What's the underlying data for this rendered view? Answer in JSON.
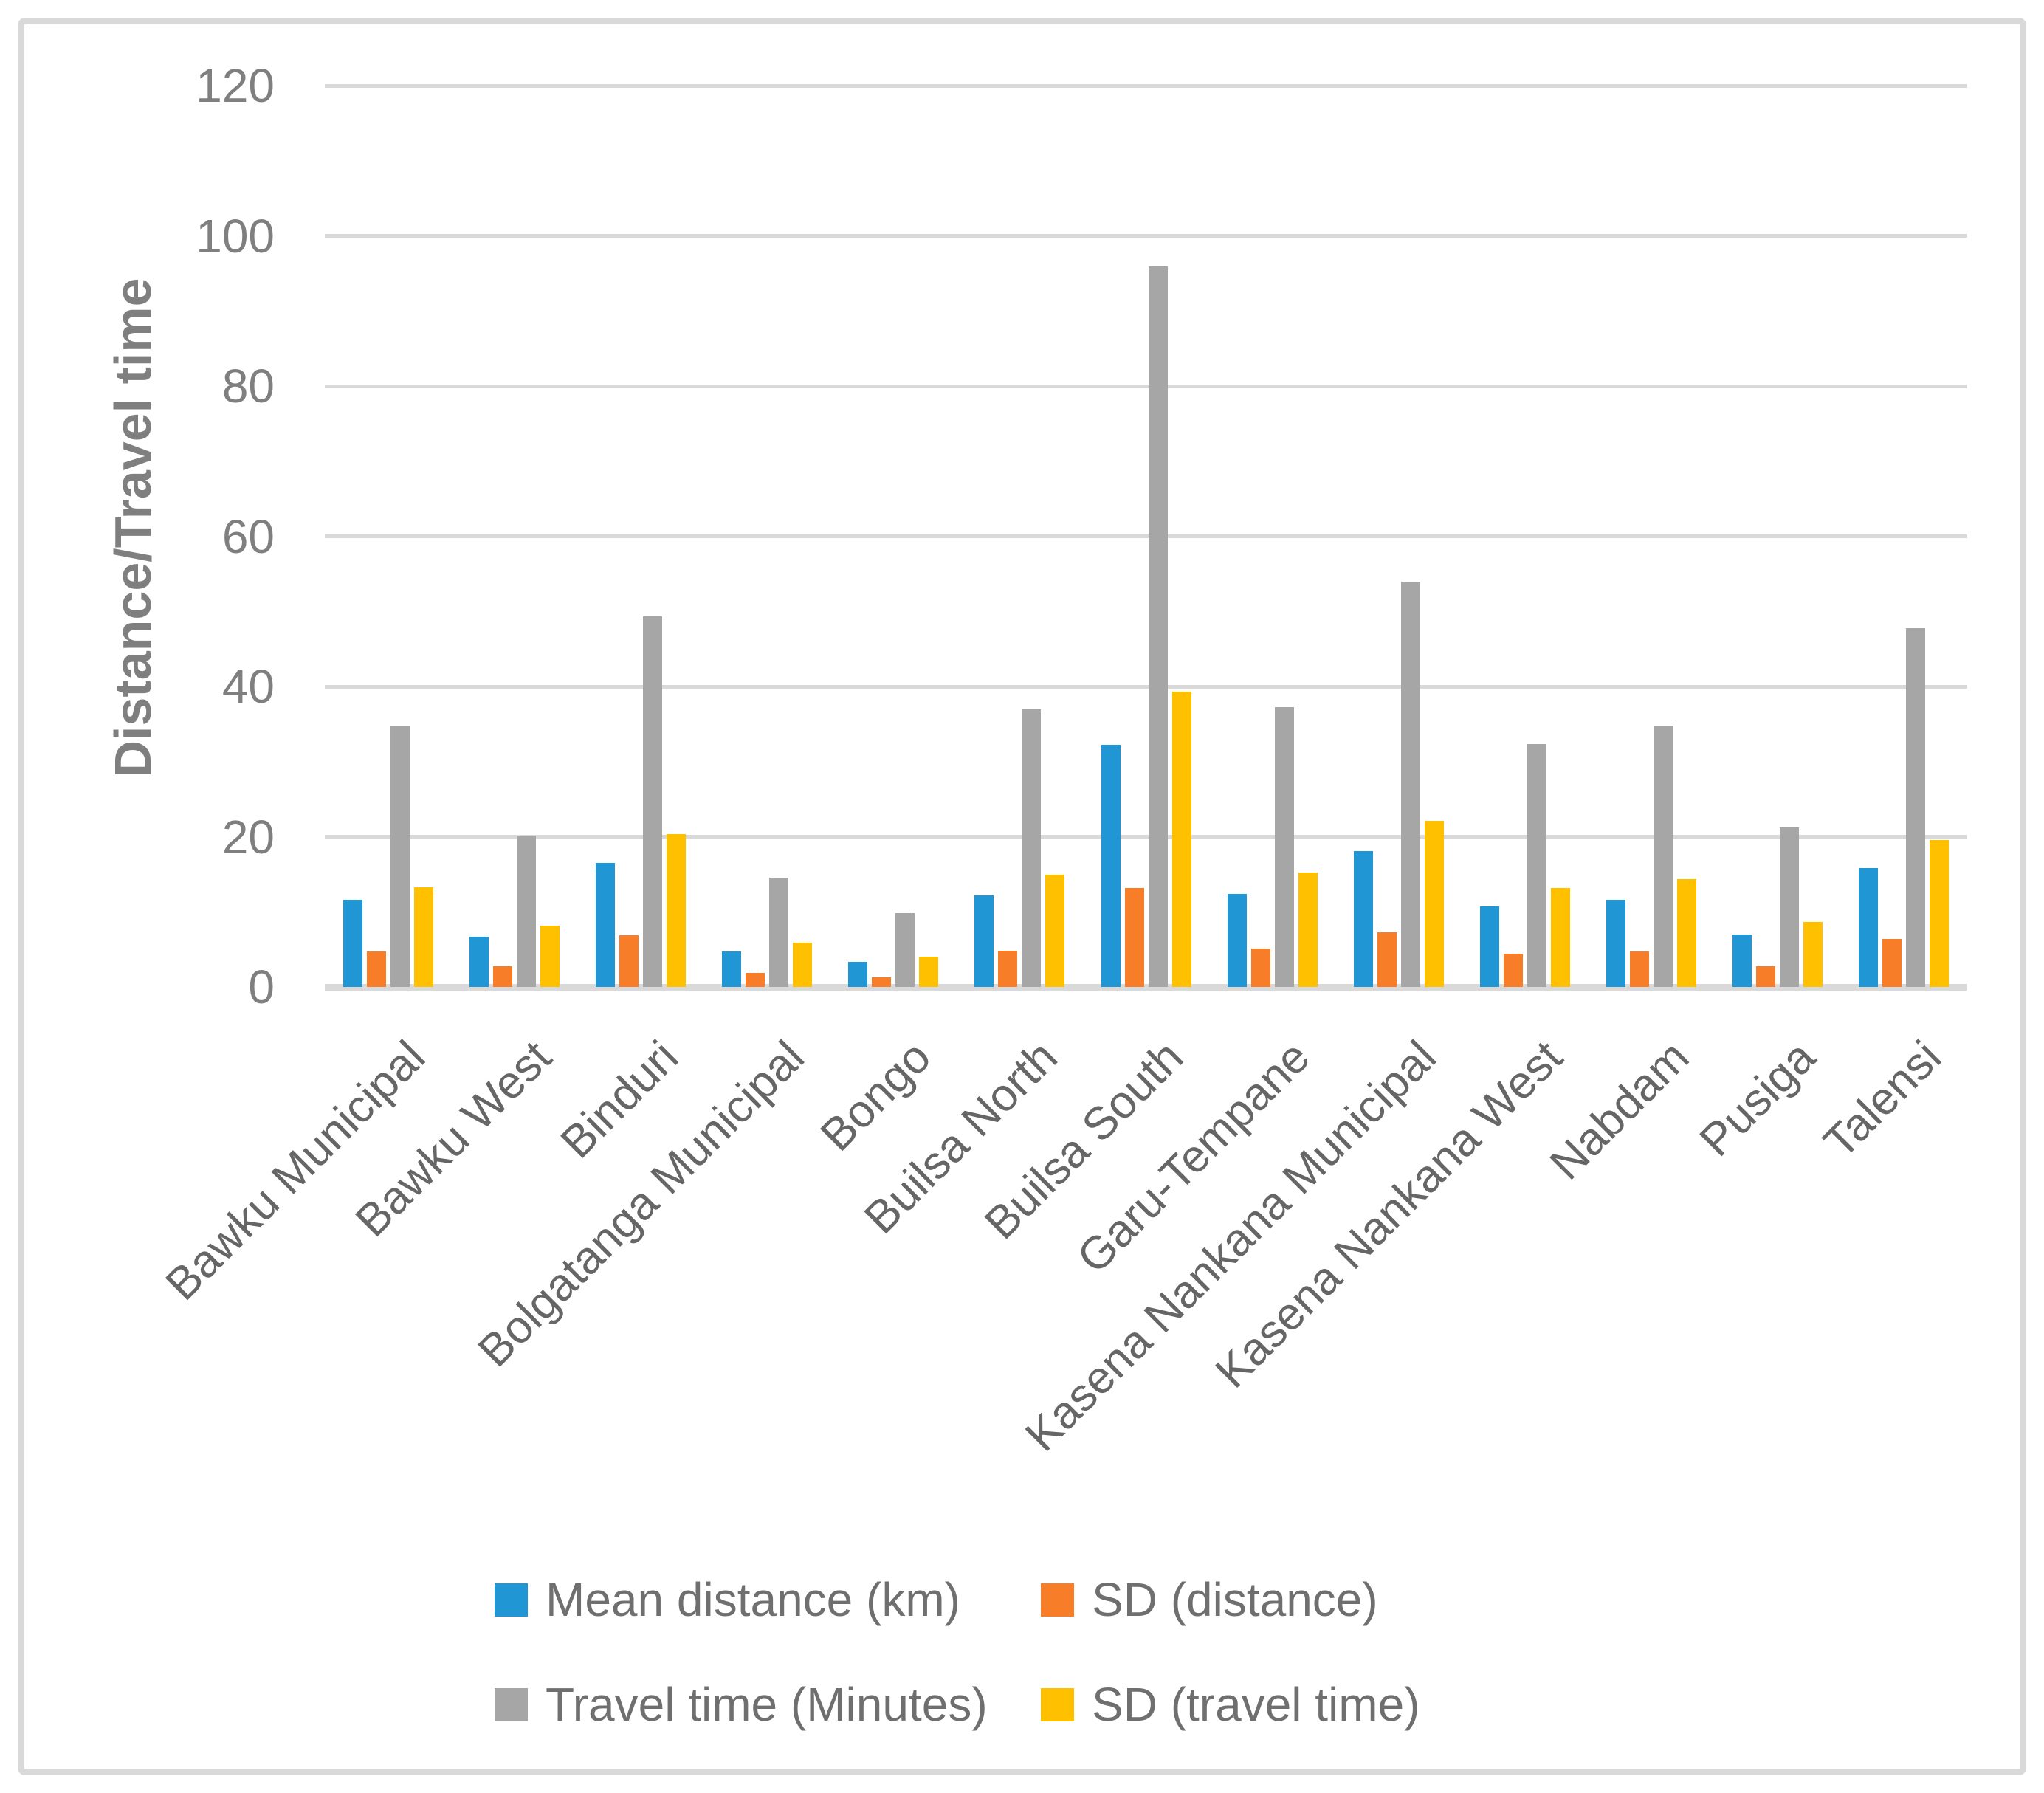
{
  "figure": {
    "y_axis_title": "Distance/Travel time"
  },
  "chart_data": {
    "type": "bar",
    "title": "",
    "xlabel": "",
    "ylabel": "Distance/Travel time",
    "ylim": [
      0,
      120
    ],
    "yticks": [
      0,
      20,
      40,
      60,
      80,
      100,
      120
    ],
    "grid": true,
    "legend_position": "bottom",
    "categories": [
      "Bawku Municipal",
      "Bawku West",
      "Binduri",
      "Bolgatanga Municipal",
      "Bongo",
      "Builsa North",
      "Builsa South",
      "Garu-Tempane",
      "Kasena Nankana Municipal",
      "Kasena Nankana West",
      "Nabdam",
      "Pusiga",
      "Talensi"
    ],
    "series": [
      {
        "name": "Mean distance (km)",
        "color": "#2196D5",
        "values": [
          11.6,
          6.7,
          16.5,
          4.7,
          3.3,
          12.2,
          32.2,
          12.4,
          18.1,
          10.7,
          11.6,
          7.0,
          15.8
        ]
      },
      {
        "name": "SD (distance)",
        "color": "#F87D28",
        "values": [
          4.7,
          2.8,
          6.9,
          1.9,
          1.3,
          4.8,
          13.2,
          5.1,
          7.3,
          4.4,
          4.7,
          2.8,
          6.4
        ]
      },
      {
        "name": "Travel time (Minutes)",
        "color": "#A6A6A6",
        "values": [
          34.7,
          20.1,
          49.3,
          14.5,
          9.8,
          37.0,
          95.9,
          37.2,
          54.0,
          32.3,
          34.8,
          21.2,
          47.8
        ]
      },
      {
        "name": "SD (travel time)",
        "color": "#FFC000",
        "values": [
          13.3,
          8.2,
          20.3,
          5.9,
          4.0,
          14.9,
          39.3,
          15.2,
          22.1,
          13.2,
          14.3,
          8.6,
          19.6
        ]
      }
    ]
  }
}
